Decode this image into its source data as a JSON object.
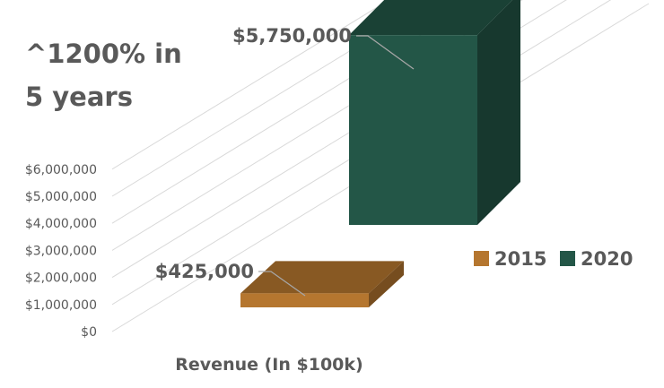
{
  "headline": {
    "line1": "^1200% in",
    "line2": "5 years"
  },
  "chart_data": {
    "type": "bar",
    "categories": [
      "Revenue (In $100k)"
    ],
    "xlabel": "Revenue (In $100k)",
    "ylabel": "",
    "ylim": [
      0,
      6000000
    ],
    "yticks": [
      0,
      1000000,
      2000000,
      3000000,
      4000000,
      5000000,
      6000000
    ],
    "ytick_labels": [
      "$0",
      "$1,000,000",
      "$2,000,000",
      "$3,000,000",
      "$4,000,000",
      "$5,000,000",
      "$6,000,000"
    ],
    "series": [
      {
        "name": "2015",
        "values": [
          425000
        ],
        "label": "$425,000",
        "color": "#B5762F"
      },
      {
        "name": "2020",
        "values": [
          5750000
        ],
        "label": "$5,750,000",
        "color": "#235647"
      }
    ],
    "grid": true,
    "legend": "right",
    "projection": "3d"
  }
}
